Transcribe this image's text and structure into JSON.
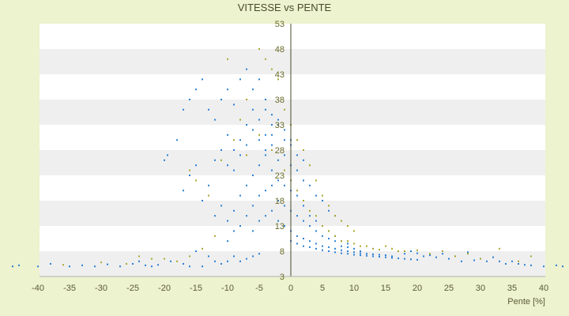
{
  "chart_data": {
    "type": "scatter",
    "title": "VITESSE vs PENTE",
    "xlabel": "Pente [%]",
    "ylabel": "",
    "xlim": [
      -40,
      42
    ],
    "ylim": [
      3,
      53
    ],
    "x_ticks": [
      -40,
      -35,
      -30,
      -25,
      -20,
      -15,
      -10,
      -5,
      0,
      5,
      10,
      15,
      20,
      25,
      30,
      35,
      40
    ],
    "y_ticks": [
      3,
      8,
      13,
      18,
      23,
      28,
      33,
      38,
      43,
      48,
      53
    ],
    "y_ticks_printed": [
      "3",
      "8",
      "13",
      "18",
      "23",
      "28",
      "33",
      "38",
      "43",
      "48",
      "53"
    ],
    "grid": "horizontal",
    "band_colors": [
      "#ffffff",
      "#efefef"
    ],
    "series": [
      {
        "color": "#2a7fd4",
        "points": [
          [
            -44,
            5
          ],
          [
            -43,
            5.2
          ],
          [
            -40,
            5
          ],
          [
            -38,
            5.5
          ],
          [
            -35,
            5
          ],
          [
            -33,
            5.2
          ],
          [
            -31,
            5
          ],
          [
            -29,
            5.4
          ],
          [
            -27,
            5
          ],
          [
            -25,
            5.5
          ],
          [
            -24,
            6
          ],
          [
            -23,
            5.2
          ],
          [
            -22,
            5
          ],
          [
            -21,
            5.3
          ],
          [
            -19,
            6
          ],
          [
            -17,
            5.5
          ],
          [
            -16,
            5
          ],
          [
            -15,
            8
          ],
          [
            -14,
            5
          ],
          [
            -13,
            7
          ],
          [
            -12,
            6
          ],
          [
            -11,
            5.5
          ],
          [
            -10,
            6
          ],
          [
            -9,
            7
          ],
          [
            -8,
            6
          ],
          [
            -7,
            6.5
          ],
          [
            -6,
            7
          ],
          [
            -5,
            7.5
          ],
          [
            -20,
            26
          ],
          [
            -19.5,
            27
          ],
          [
            -18,
            30
          ],
          [
            -17,
            36
          ],
          [
            -16,
            38
          ],
          [
            -15,
            40
          ],
          [
            -14,
            42
          ],
          [
            -13,
            36
          ],
          [
            -12,
            34
          ],
          [
            -11,
            38
          ],
          [
            -10,
            40
          ],
          [
            -9,
            37
          ],
          [
            -8,
            42
          ],
          [
            -7,
            44
          ],
          [
            -6,
            40
          ],
          [
            -5,
            42
          ],
          [
            -4,
            38
          ],
          [
            -3,
            35
          ],
          [
            -2,
            33
          ],
          [
            -1,
            30
          ],
          [
            0,
            29
          ],
          [
            -17,
            20
          ],
          [
            -16,
            23
          ],
          [
            -15,
            25
          ],
          [
            -14,
            18
          ],
          [
            -13,
            21
          ],
          [
            -12,
            26
          ],
          [
            -11,
            28
          ],
          [
            -10,
            31
          ],
          [
            -9,
            24
          ],
          [
            -8,
            27
          ],
          [
            -7,
            29
          ],
          [
            -6,
            32
          ],
          [
            -5,
            30
          ],
          [
            -4,
            31
          ],
          [
            -3,
            29
          ],
          [
            -2,
            26
          ],
          [
            -1,
            27
          ],
          [
            0,
            25
          ],
          [
            1,
            24
          ],
          [
            2,
            22
          ],
          [
            3,
            21
          ],
          [
            4,
            19
          ],
          [
            5,
            18
          ],
          [
            6,
            16
          ],
          [
            7,
            15
          ],
          [
            -12,
            15
          ],
          [
            -11,
            17
          ],
          [
            -10,
            14
          ],
          [
            -9,
            16
          ],
          [
            -8,
            19
          ],
          [
            -7,
            21
          ],
          [
            -6,
            23
          ],
          [
            -5,
            25
          ],
          [
            -4,
            27
          ],
          [
            -3,
            24
          ],
          [
            -2,
            22
          ],
          [
            -1,
            21
          ],
          [
            0,
            20
          ],
          [
            1,
            19
          ],
          [
            2,
            17
          ],
          [
            3,
            15
          ],
          [
            4,
            14
          ],
          [
            5,
            13
          ],
          [
            6,
            12
          ],
          [
            7,
            11
          ],
          [
            8,
            10
          ],
          [
            9,
            9.5
          ],
          [
            -10,
            10
          ],
          [
            -9,
            12
          ],
          [
            -8,
            13
          ],
          [
            -7,
            15
          ],
          [
            -6,
            17
          ],
          [
            -5,
            19
          ],
          [
            -4,
            20
          ],
          [
            -3,
            21
          ],
          [
            -2,
            18
          ],
          [
            -1,
            17
          ],
          [
            0,
            16
          ],
          [
            1,
            15
          ],
          [
            2,
            14
          ],
          [
            3,
            13
          ],
          [
            4,
            12
          ],
          [
            5,
            11
          ],
          [
            6,
            10.5
          ],
          [
            7,
            10
          ],
          [
            8,
            9
          ],
          [
            9,
            8.8
          ],
          [
            10,
            8.5
          ],
          [
            11,
            8
          ],
          [
            -6,
            12
          ],
          [
            -5,
            14
          ],
          [
            -4,
            15
          ],
          [
            -3,
            16
          ],
          [
            -2,
            14
          ],
          [
            -1,
            13
          ],
          [
            0,
            12
          ],
          [
            1,
            11
          ],
          [
            2,
            10.5
          ],
          [
            3,
            10
          ],
          [
            4,
            9.5
          ],
          [
            5,
            9
          ],
          [
            6,
            8.8
          ],
          [
            7,
            8.5
          ],
          [
            8,
            8.2
          ],
          [
            9,
            8
          ],
          [
            10,
            7.8
          ],
          [
            11,
            7.6
          ],
          [
            12,
            7.5
          ],
          [
            13,
            7.4
          ],
          [
            14,
            7.3
          ],
          [
            15,
            7.2
          ],
          [
            16,
            7
          ],
          [
            -4,
            28
          ],
          [
            -3,
            31
          ],
          [
            -2,
            34
          ],
          [
            -1,
            32
          ],
          [
            0,
            30
          ],
          [
            1,
            27
          ],
          [
            2,
            26
          ],
          [
            -5,
            34
          ],
          [
            -4,
            36
          ],
          [
            -3,
            33
          ],
          [
            -6,
            36
          ],
          [
            -7,
            33
          ],
          [
            -8,
            30
          ],
          [
            -9,
            28
          ],
          [
            -10,
            25
          ],
          [
            0,
            10
          ],
          [
            1,
            9.5
          ],
          [
            2,
            9
          ],
          [
            3,
            8.8
          ],
          [
            4,
            8.5
          ],
          [
            5,
            8.2
          ],
          [
            6,
            8
          ],
          [
            7,
            7.8
          ],
          [
            8,
            7.6
          ],
          [
            9,
            7.5
          ],
          [
            10,
            7.3
          ],
          [
            11,
            7.2
          ],
          [
            12,
            7.1
          ],
          [
            13,
            7
          ],
          [
            14,
            6.9
          ],
          [
            15,
            6.8
          ],
          [
            16,
            6.7
          ],
          [
            17,
            6.6
          ],
          [
            18,
            6.5
          ],
          [
            19,
            6.4
          ],
          [
            20,
            6.3
          ],
          [
            18,
            7.5
          ],
          [
            19,
            8
          ],
          [
            20,
            7.6
          ],
          [
            21,
            7
          ],
          [
            22,
            7.2
          ],
          [
            23,
            6.8
          ],
          [
            24,
            7.5
          ],
          [
            25,
            6.5
          ],
          [
            26,
            7
          ],
          [
            27,
            6
          ],
          [
            28,
            7.8
          ],
          [
            29,
            6.2
          ],
          [
            30,
            6.5
          ],
          [
            31,
            6
          ],
          [
            32,
            6.8
          ],
          [
            33,
            6
          ],
          [
            34,
            5.5
          ],
          [
            35,
            6
          ],
          [
            36,
            5.5
          ],
          [
            37,
            5.3
          ],
          [
            38,
            5.2
          ],
          [
            40,
            5
          ],
          [
            42,
            5.2
          ],
          [
            43,
            5
          ]
        ]
      },
      {
        "color": "#a9a72e",
        "points": [
          [
            -24,
            7
          ],
          [
            -22,
            6.5
          ],
          [
            -18,
            6
          ],
          [
            -16,
            7
          ],
          [
            -14,
            8.5
          ],
          [
            -12,
            11
          ],
          [
            -10,
            46
          ],
          [
            -8,
            34
          ],
          [
            -7,
            38
          ],
          [
            -5,
            48
          ],
          [
            -4,
            46
          ],
          [
            -3,
            44
          ],
          [
            -2,
            42
          ],
          [
            -1,
            36
          ],
          [
            0,
            33
          ],
          [
            1,
            30
          ],
          [
            2,
            28
          ],
          [
            3,
            25
          ],
          [
            4,
            22
          ],
          [
            5,
            19
          ],
          [
            6,
            17
          ],
          [
            7,
            15
          ],
          [
            8,
            14
          ],
          [
            9,
            13
          ],
          [
            10,
            12
          ],
          [
            -16,
            24
          ],
          [
            -15,
            22
          ],
          [
            -13,
            19
          ],
          [
            -11,
            26
          ],
          [
            -9,
            30
          ],
          [
            -7,
            27
          ],
          [
            -5,
            31
          ],
          [
            -3,
            28
          ],
          [
            -1,
            24
          ],
          [
            0,
            22
          ],
          [
            1,
            20
          ],
          [
            2,
            18
          ],
          [
            3,
            16
          ],
          [
            4,
            15
          ],
          [
            5,
            13
          ],
          [
            6,
            12
          ],
          [
            7,
            11
          ],
          [
            8,
            10
          ],
          [
            9,
            10
          ],
          [
            10,
            9.5
          ],
          [
            11,
            9
          ],
          [
            12,
            9
          ],
          [
            13,
            8.5
          ],
          [
            14,
            8.3
          ],
          [
            15,
            9
          ],
          [
            16,
            8.5
          ],
          [
            17,
            8
          ],
          [
            18,
            8
          ],
          [
            20,
            8.2
          ],
          [
            22,
            7.5
          ],
          [
            24,
            8
          ],
          [
            26,
            7
          ],
          [
            28,
            7.5
          ],
          [
            30,
            6.5
          ],
          [
            33,
            8.5
          ],
          [
            36,
            6
          ],
          [
            38,
            7
          ],
          [
            -20,
            6.5
          ],
          [
            -26,
            5.5
          ],
          [
            -30,
            5.8
          ],
          [
            -36,
            5.3
          ]
        ]
      }
    ]
  }
}
